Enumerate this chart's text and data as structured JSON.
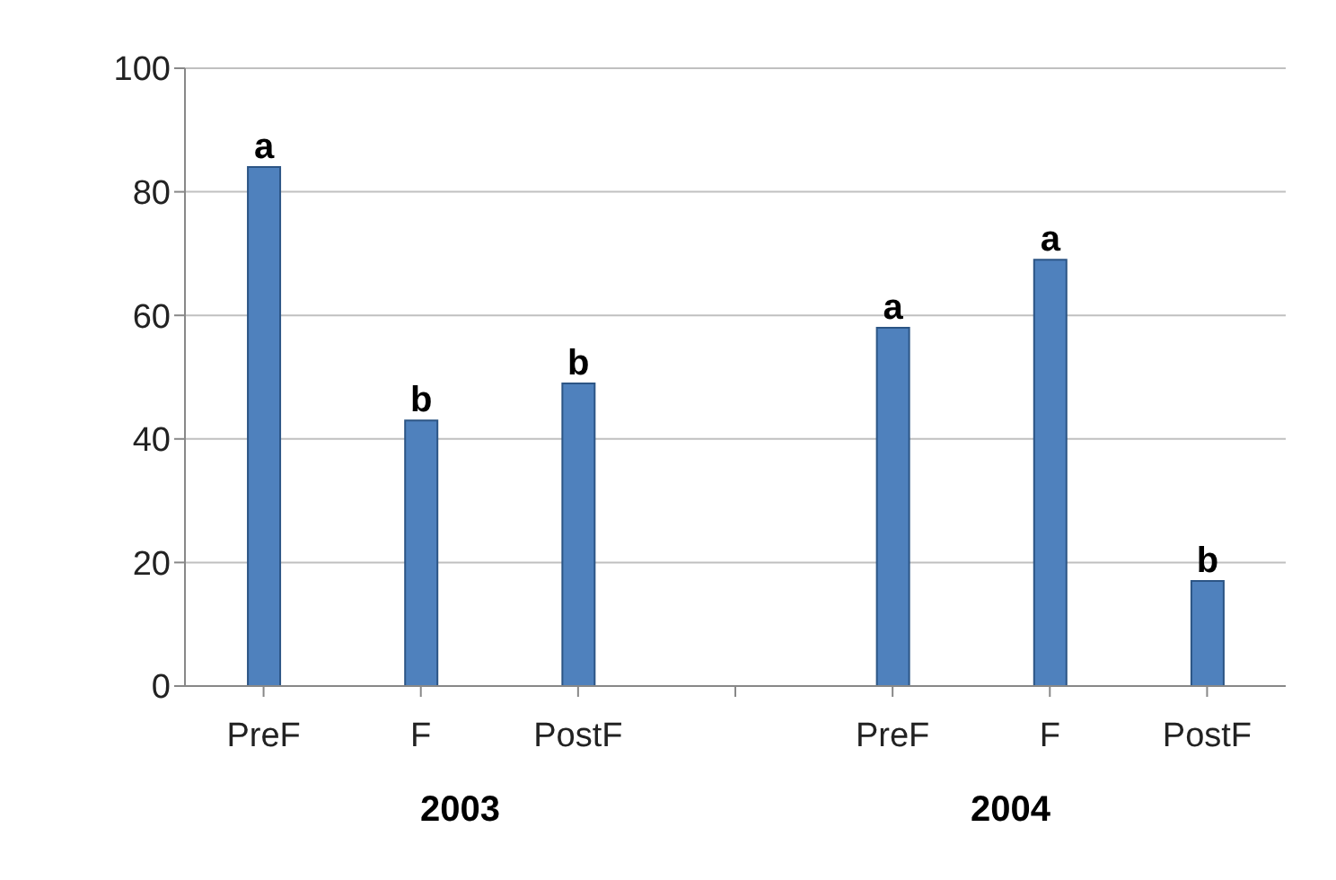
{
  "chart_data": {
    "type": "bar",
    "categories": [
      "PreF",
      "F",
      "PostF",
      null,
      "PreF",
      "F",
      "PostF"
    ],
    "values": [
      84,
      43,
      49,
      null,
      58,
      69,
      17
    ],
    "value_labels": [
      "a",
      "b",
      "b",
      null,
      "a",
      "a",
      "b"
    ],
    "color": "#4f81bd",
    "ylim": [
      0,
      100
    ],
    "yticks": [
      0,
      20,
      40,
      60,
      80,
      100
    ],
    "grid": "y",
    "annotations": [
      "2003",
      "2004"
    ]
  }
}
